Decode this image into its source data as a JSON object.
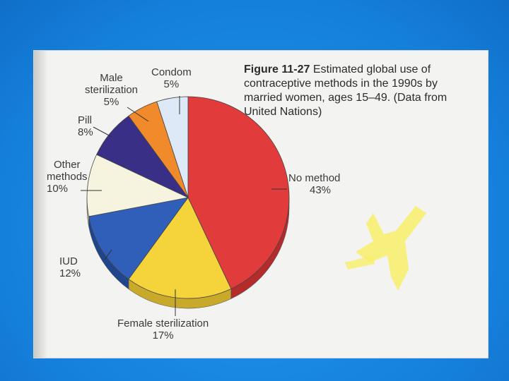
{
  "chart_data": {
    "type": "pie",
    "title": "Figure 11-27 Estimated global use of contraceptive methods in the 1990s by married women, ages 15–49. (Data from United Nations)",
    "slices": [
      {
        "label": "No method",
        "value": 43,
        "color": "#e23b3b",
        "side": "#b52a2a"
      },
      {
        "label": "Female sterilization",
        "value": 17,
        "color": "#f4d43a",
        "side": "#c9a92a"
      },
      {
        "label": "IUD",
        "value": 12,
        "color": "#2f5fb8",
        "side": "#1f458d"
      },
      {
        "label": "Other methods",
        "value": 10,
        "color": "#f6f3df",
        "side": "#cfcbb4"
      },
      {
        "label": "Pill",
        "value": 8,
        "color": "#3a2f86",
        "side": "#2a2265"
      },
      {
        "label": "Male sterilization",
        "value": 5,
        "color": "#f08a2a",
        "side": "#c56b1d"
      },
      {
        "label": "Condom",
        "value": 5,
        "color": "#dde9f7",
        "side": "#b8c6d8"
      }
    ]
  },
  "caption": {
    "figure": "Figure 11-27",
    "text": "Estimated global use of contraceptive methods in the 1990s by married women, ages 15–49. (Data from United Nations)"
  },
  "labels": {
    "no_method": {
      "name": "No method",
      "pct": "43%"
    },
    "female_ster": {
      "name": "Female sterilization",
      "pct": "17%"
    },
    "iud": {
      "name": "IUD",
      "pct": "12%"
    },
    "other": {
      "name1": "Other",
      "name2": "methods",
      "pct": "10%"
    },
    "pill": {
      "name": "Pill",
      "pct": "8%"
    },
    "male_ster": {
      "name1": "Male",
      "name2": "sterilization",
      "pct": "5%"
    },
    "condom": {
      "name": "Condom",
      "pct": "5%"
    }
  }
}
